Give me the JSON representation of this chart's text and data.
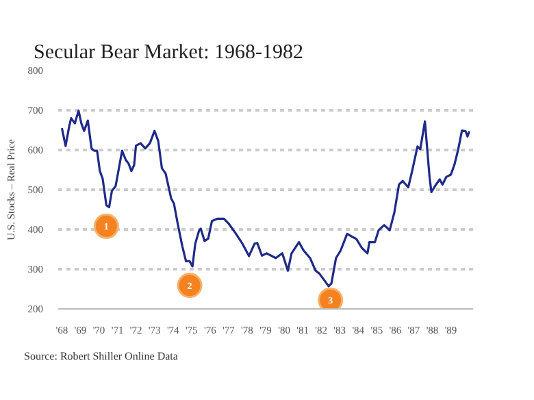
{
  "chart_data": {
    "type": "line",
    "title": "Secular Bear Market: 1968-1982",
    "ylabel": "U.S. Stocks – Real Price",
    "x": [
      1968.0,
      1968.2,
      1968.4,
      1968.5,
      1968.7,
      1968.9,
      1969.05,
      1969.2,
      1969.4,
      1969.6,
      1969.75,
      1969.9,
      1970.05,
      1970.2,
      1970.4,
      1970.55,
      1970.7,
      1970.9,
      1971.05,
      1971.25,
      1971.45,
      1971.6,
      1971.75,
      1971.9,
      1972.0,
      1972.25,
      1972.5,
      1972.75,
      1973.0,
      1973.2,
      1973.4,
      1973.6,
      1973.9,
      1974.05,
      1974.25,
      1974.5,
      1974.7,
      1974.9,
      1975.05,
      1975.2,
      1975.4,
      1975.5,
      1975.7,
      1975.9,
      1976.1,
      1976.4,
      1976.75,
      1977.0,
      1977.4,
      1977.75,
      1978.1,
      1978.4,
      1978.55,
      1978.8,
      1979.05,
      1979.55,
      1979.9,
      1980.2,
      1980.4,
      1980.8,
      1981.05,
      1981.4,
      1981.7,
      1981.9,
      1982.2,
      1982.4,
      1982.55,
      1982.8,
      1983.05,
      1983.4,
      1983.7,
      1983.9,
      1984.2,
      1984.5,
      1984.6,
      1984.9,
      1985.1,
      1985.4,
      1985.7,
      1985.95,
      1986.2,
      1986.4,
      1986.7,
      1986.9,
      1987.2,
      1987.35,
      1987.6,
      1987.85,
      1987.95,
      1988.2,
      1988.4,
      1988.55,
      1988.75,
      1989.0,
      1989.2,
      1989.4,
      1989.6,
      1989.8,
      1989.9,
      1990.0
    ],
    "series": [
      {
        "color": "#1f2a8a",
        "values": [
          655,
          610,
          661,
          680,
          667,
          699,
          667,
          648,
          674,
          604,
          598,
          598,
          547,
          528,
          461,
          456,
          497,
          509,
          547,
          598,
          575,
          566,
          547,
          562,
          611,
          617,
          604,
          617,
          648,
          623,
          554,
          541,
          478,
          465,
          415,
          358,
          320,
          320,
          307,
          364,
          396,
          402,
          371,
          377,
          421,
          427,
          427,
          415,
          389,
          364,
          333,
          364,
          366,
          334,
          340,
          328,
          340,
          296,
          340,
          368,
          347,
          328,
          296,
          289,
          270,
          257,
          264,
          328,
          347,
          389,
          381,
          376,
          353,
          340,
          368,
          368,
          398,
          411,
          398,
          443,
          513,
          522,
          506,
          545,
          609,
          602,
          672,
          532,
          494,
          513,
          526,
          513,
          532,
          538,
          564,
          602,
          649,
          647,
          634,
          647
        ]
      }
    ],
    "xlim": [
      1967.8,
      1990.2
    ],
    "xticks": [
      {
        "value": 1968,
        "label": "'68"
      },
      {
        "value": 1969,
        "label": "'69"
      },
      {
        "value": 1970,
        "label": "'70"
      },
      {
        "value": 1971,
        "label": "'71"
      },
      {
        "value": 1972,
        "label": "'72"
      },
      {
        "value": 1973,
        "label": "'73"
      },
      {
        "value": 1974,
        "label": "'74"
      },
      {
        "value": 1975,
        "label": "'75"
      },
      {
        "value": 1976,
        "label": "'76"
      },
      {
        "value": 1977,
        "label": "'77"
      },
      {
        "value": 1978,
        "label": "'78"
      },
      {
        "value": 1979,
        "label": "'79"
      },
      {
        "value": 1980,
        "label": "'80"
      },
      {
        "value": 1981,
        "label": "'81"
      },
      {
        "value": 1982,
        "label": "'82"
      },
      {
        "value": 1983,
        "label": "'83"
      },
      {
        "value": 1984,
        "label": "'84"
      },
      {
        "value": 1985,
        "label": "'85"
      },
      {
        "value": 1986,
        "label": "'86"
      },
      {
        "value": 1987,
        "label": "'87"
      },
      {
        "value": 1988,
        "label": "'88"
      },
      {
        "value": 1989,
        "label": "'89"
      }
    ],
    "ylim": [
      200,
      800
    ],
    "yticks": [
      200,
      300,
      400,
      500,
      600,
      700,
      800
    ],
    "grid": "y",
    "marker": "none",
    "line_style": "solid",
    "annotations": [
      {
        "text": "1",
        "x": 1970.4,
        "y": 408
      },
      {
        "text": "2",
        "x": 1974.9,
        "y": 259
      },
      {
        "text": "3",
        "x": 1982.5,
        "y": 222
      },
      "Source: Robert Shiller Online Data"
    ]
  }
}
